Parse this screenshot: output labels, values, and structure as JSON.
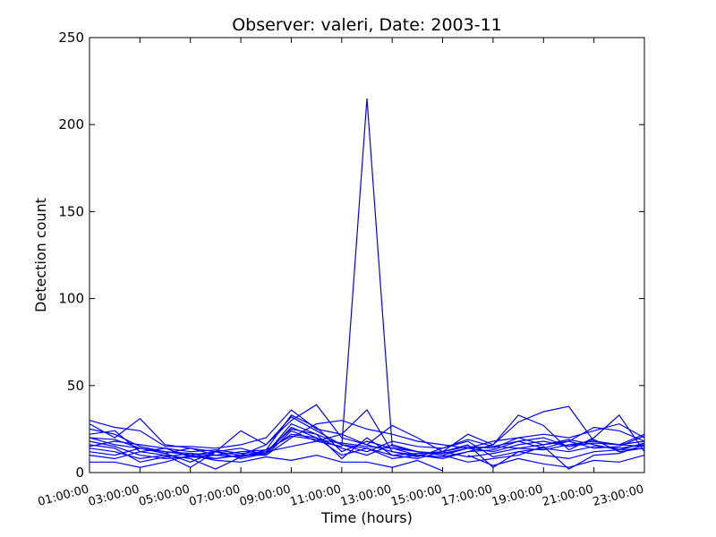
{
  "chart_data": {
    "type": "line",
    "title": "Observer: valeri, Date: 2003-11",
    "xlabel": "Time (hours)",
    "ylabel": "Detection count",
    "xlim": [
      1,
      23
    ],
    "ylim": [
      0,
      250
    ],
    "x_tick_values": [
      1,
      3,
      5,
      7,
      9,
      11,
      13,
      15,
      17,
      19,
      21,
      23
    ],
    "x_tick_labels": [
      "01:00:00",
      "03:00:00",
      "05:00:00",
      "07:00:00",
      "09:00:00",
      "11:00:00",
      "13:00:00",
      "15:00:00",
      "17:00:00",
      "19:00:00",
      "21:00:00",
      "23:00:00"
    ],
    "y_ticks": [
      0,
      50,
      100,
      150,
      200,
      250
    ],
    "grid": false,
    "line_color": "#0000ff",
    "x": [
      1,
      2,
      3,
      4,
      5,
      6,
      7,
      8,
      9,
      10,
      11,
      12,
      13,
      14,
      15,
      16,
      17,
      18,
      19,
      20,
      21,
      22,
      23
    ],
    "series": [
      {
        "values": [
          20,
          16,
          14,
          12,
          11,
          10,
          9,
          12,
          15,
          18,
          15,
          215,
          15,
          12,
          10,
          14,
          12,
          16,
          18,
          15,
          17,
          16,
          18
        ]
      },
      {
        "values": [
          30,
          26,
          24,
          15,
          15,
          14,
          16,
          20,
          36,
          25,
          22,
          36,
          12,
          10,
          8,
          12,
          16,
          33,
          27,
          13,
          20,
          33,
          12
        ]
      },
      {
        "values": [
          28,
          20,
          31,
          16,
          14,
          12,
          24,
          16,
          30,
          39,
          20,
          16,
          27,
          20,
          12,
          22,
          16,
          29,
          35,
          38,
          18,
          16,
          22
        ]
      },
      {
        "values": [
          25,
          22,
          15,
          12,
          10,
          12,
          14,
          10,
          20,
          28,
          30,
          25,
          22,
          18,
          16,
          14,
          18,
          20,
          22,
          20,
          24,
          28,
          20
        ]
      },
      {
        "values": [
          22,
          24,
          12,
          14,
          9,
          8,
          10,
          16,
          32,
          24,
          16,
          12,
          18,
          15,
          14,
          19,
          15,
          18,
          14,
          12,
          15,
          14,
          16
        ]
      },
      {
        "values": [
          18,
          15,
          10,
          8,
          9,
          10,
          9,
          13,
          33,
          26,
          12,
          18,
          14,
          10,
          9,
          12,
          13,
          18,
          20,
          15,
          19,
          12,
          14
        ]
      },
      {
        "values": [
          16,
          14,
          6,
          9,
          11,
          8,
          10,
          11,
          28,
          22,
          8,
          20,
          10,
          11,
          12,
          9,
          11,
          14,
          16,
          19,
          16,
          13,
          17
        ]
      },
      {
        "values": [
          14,
          12,
          8,
          10,
          3,
          12,
          8,
          11,
          26,
          20,
          10,
          14,
          8,
          10,
          12,
          15,
          14,
          20,
          16,
          18,
          14,
          15,
          21
        ]
      },
      {
        "values": [
          12,
          10,
          14,
          11,
          6,
          12,
          10,
          10,
          24,
          18,
          22,
          16,
          12,
          9,
          14,
          18,
          9,
          12,
          10,
          8,
          12,
          13,
          14
        ]
      },
      {
        "values": [
          10,
          8,
          12,
          10,
          8,
          2,
          9,
          12,
          22,
          20,
          14,
          10,
          16,
          12,
          10,
          6,
          8,
          10,
          15,
          2,
          10,
          11,
          16
        ]
      },
      {
        "values": [
          15,
          18,
          16,
          14,
          12,
          13,
          11,
          12,
          25,
          22,
          16,
          14,
          10,
          8,
          12,
          16,
          3,
          12,
          14,
          18,
          26,
          24,
          18
        ]
      },
      {
        "values": [
          20,
          19,
          14,
          11,
          14,
          10,
          12,
          13,
          21,
          19,
          17,
          15,
          14,
          12,
          11,
          14,
          15,
          14,
          13,
          16,
          18,
          16,
          15
        ]
      },
      {
        "values": [
          6,
          6,
          3,
          6,
          10,
          7,
          6,
          9,
          7,
          10,
          6,
          6,
          3,
          7,
          1,
          null,
          null,
          null,
          null,
          null,
          null,
          null,
          null
        ]
      },
      {
        "values": [
          null,
          null,
          null,
          null,
          null,
          null,
          null,
          null,
          null,
          null,
          null,
          null,
          null,
          null,
          null,
          10,
          4,
          8,
          5,
          3,
          7,
          6,
          10
        ]
      }
    ]
  }
}
